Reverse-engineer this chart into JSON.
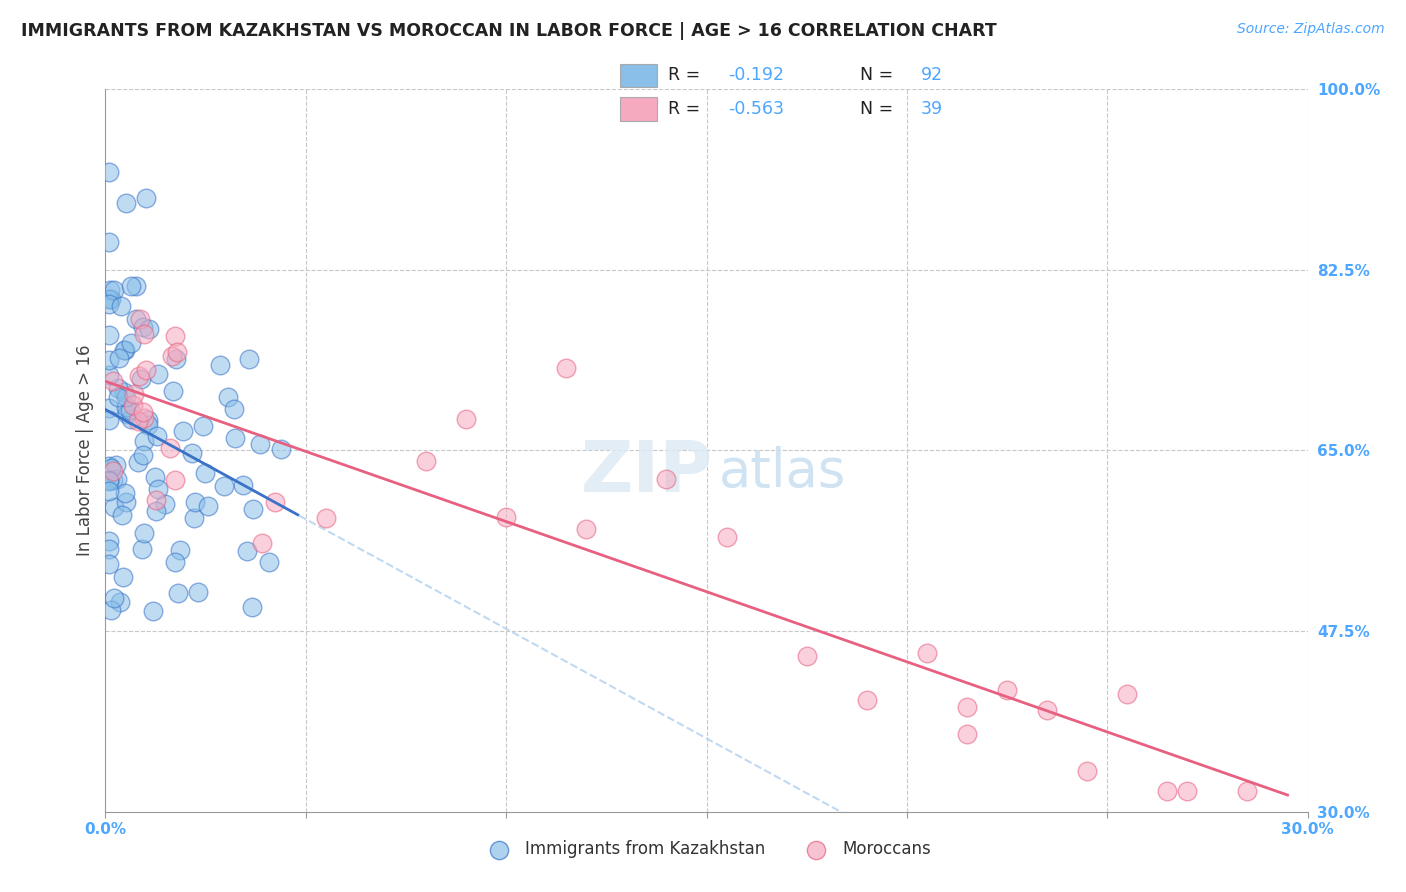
{
  "title": "IMMIGRANTS FROM KAZAKHSTAN VS MOROCCAN IN LABOR FORCE | AGE > 16 CORRELATION CHART",
  "source": "Source: ZipAtlas.com",
  "ylabel": "In Labor Force | Age > 16",
  "xlim": [
    0.0,
    0.3
  ],
  "ylim": [
    0.3,
    1.0
  ],
  "ytick_labels_right": [
    "100.0%",
    "82.5%",
    "65.0%",
    "47.5%",
    "30.0%"
  ],
  "yticks_right": [
    1.0,
    0.825,
    0.65,
    0.475,
    0.3
  ],
  "watermark_zip": "ZIP",
  "watermark_atlas": "atlas",
  "color_kaz": "#89bfe8",
  "color_mor": "#f5aabf",
  "color_kaz_line": "#3a72c8",
  "color_mor_line": "#e86080",
  "color_kaz_ext": "#b0d0ee",
  "grid_color": "#c8c8c8",
  "title_color": "#222222",
  "right_axis_color": "#4da6ff",
  "legend_r_color": "#222222",
  "legend_n_color": "#222222",
  "legend_val_color": "#4da6ff"
}
